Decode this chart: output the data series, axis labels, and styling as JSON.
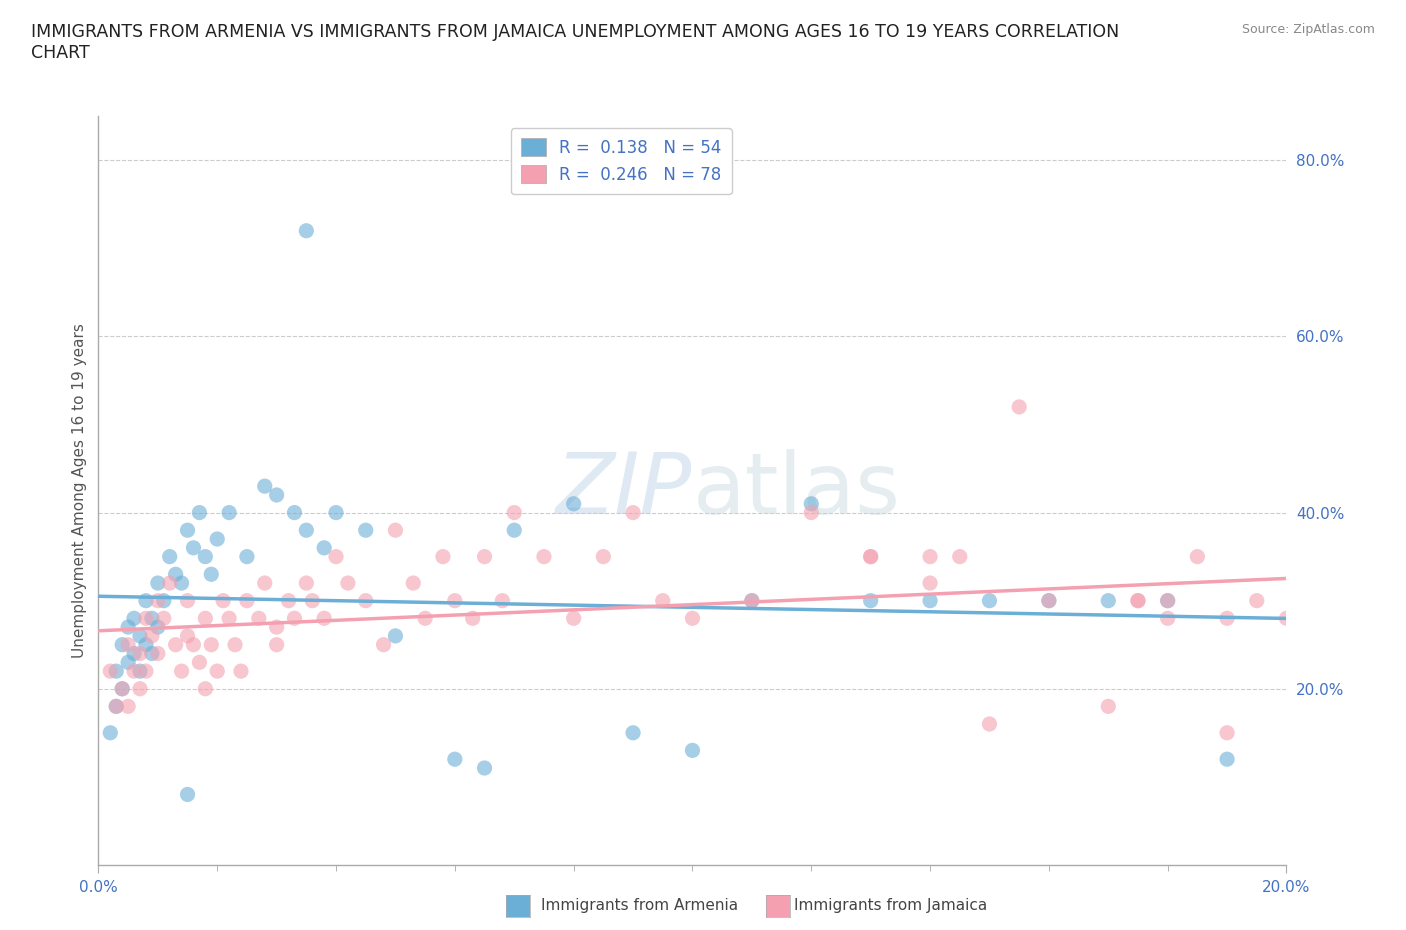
{
  "title": "IMMIGRANTS FROM ARMENIA VS IMMIGRANTS FROM JAMAICA UNEMPLOYMENT AMONG AGES 16 TO 19 YEARS CORRELATION\nCHART",
  "source_text": "Source: ZipAtlas.com",
  "ylabel_text": "Unemployment Among Ages 16 to 19 years",
  "legend_label_1": "Immigrants from Armenia",
  "legend_label_2": "Immigrants from Jamaica",
  "R1": "0.138",
  "N1": "54",
  "R2": "0.246",
  "N2": "78",
  "xlim": [
    0.0,
    0.2
  ],
  "ylim": [
    0.0,
    0.85
  ],
  "y_ticks": [
    0.2,
    0.4,
    0.6,
    0.8
  ],
  "y_tick_labels": [
    "20.0%",
    "40.0%",
    "60.0%",
    "80.0%"
  ],
  "color_armenia": "#6baed6",
  "color_jamaica": "#f4a0b0",
  "background_color": "#ffffff",
  "watermark_text": "ZIPatlas",
  "armenia_x": [
    0.002,
    0.003,
    0.003,
    0.004,
    0.004,
    0.005,
    0.005,
    0.006,
    0.006,
    0.007,
    0.007,
    0.008,
    0.008,
    0.009,
    0.009,
    0.01,
    0.01,
    0.011,
    0.012,
    0.013,
    0.014,
    0.015,
    0.016,
    0.017,
    0.018,
    0.019,
    0.02,
    0.022,
    0.025,
    0.028,
    0.03,
    0.033,
    0.035,
    0.038,
    0.04,
    0.045,
    0.05,
    0.06,
    0.065,
    0.07,
    0.08,
    0.09,
    0.1,
    0.11,
    0.12,
    0.13,
    0.14,
    0.15,
    0.16,
    0.17,
    0.18,
    0.19,
    0.035,
    0.015
  ],
  "armenia_y": [
    0.15,
    0.18,
    0.22,
    0.2,
    0.25,
    0.23,
    0.27,
    0.24,
    0.28,
    0.22,
    0.26,
    0.25,
    0.3,
    0.24,
    0.28,
    0.27,
    0.32,
    0.3,
    0.35,
    0.33,
    0.32,
    0.38,
    0.36,
    0.4,
    0.35,
    0.33,
    0.37,
    0.4,
    0.35,
    0.43,
    0.42,
    0.4,
    0.38,
    0.36,
    0.4,
    0.38,
    0.26,
    0.12,
    0.11,
    0.38,
    0.41,
    0.15,
    0.13,
    0.3,
    0.41,
    0.3,
    0.3,
    0.3,
    0.3,
    0.3,
    0.3,
    0.12,
    0.72,
    0.08
  ],
  "jamaica_x": [
    0.002,
    0.003,
    0.004,
    0.005,
    0.005,
    0.006,
    0.007,
    0.007,
    0.008,
    0.008,
    0.009,
    0.01,
    0.01,
    0.011,
    0.012,
    0.013,
    0.014,
    0.015,
    0.015,
    0.016,
    0.017,
    0.018,
    0.018,
    0.019,
    0.02,
    0.021,
    0.022,
    0.023,
    0.024,
    0.025,
    0.027,
    0.028,
    0.03,
    0.03,
    0.032,
    0.033,
    0.035,
    0.036,
    0.038,
    0.04,
    0.042,
    0.045,
    0.048,
    0.05,
    0.053,
    0.055,
    0.058,
    0.06,
    0.063,
    0.065,
    0.068,
    0.07,
    0.075,
    0.08,
    0.085,
    0.09,
    0.095,
    0.1,
    0.11,
    0.12,
    0.13,
    0.14,
    0.145,
    0.15,
    0.16,
    0.17,
    0.175,
    0.18,
    0.185,
    0.19,
    0.155,
    0.175,
    0.18,
    0.19,
    0.195,
    0.2,
    0.13,
    0.14
  ],
  "jamaica_y": [
    0.22,
    0.18,
    0.2,
    0.25,
    0.18,
    0.22,
    0.2,
    0.24,
    0.28,
    0.22,
    0.26,
    0.24,
    0.3,
    0.28,
    0.32,
    0.25,
    0.22,
    0.26,
    0.3,
    0.25,
    0.23,
    0.28,
    0.2,
    0.25,
    0.22,
    0.3,
    0.28,
    0.25,
    0.22,
    0.3,
    0.28,
    0.32,
    0.25,
    0.27,
    0.3,
    0.28,
    0.32,
    0.3,
    0.28,
    0.35,
    0.32,
    0.3,
    0.25,
    0.38,
    0.32,
    0.28,
    0.35,
    0.3,
    0.28,
    0.35,
    0.3,
    0.4,
    0.35,
    0.28,
    0.35,
    0.4,
    0.3,
    0.28,
    0.3,
    0.4,
    0.35,
    0.32,
    0.35,
    0.16,
    0.3,
    0.18,
    0.3,
    0.28,
    0.35,
    0.15,
    0.52,
    0.3,
    0.3,
    0.28,
    0.3,
    0.28,
    0.35,
    0.35
  ]
}
